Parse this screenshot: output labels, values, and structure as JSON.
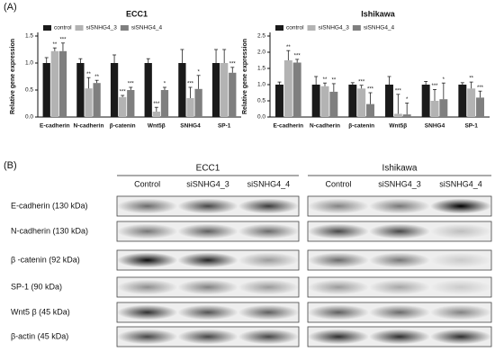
{
  "panel_labels": [
    "(A)",
    "(B)"
  ],
  "chart_data": [
    {
      "type": "bar",
      "title": "ECC1",
      "y_label": "Relative gene expression",
      "categories": [
        "E-cadherin",
        "N-cadherin",
        "β-catenin",
        "Wnt5β",
        "SNHG4",
        "SP-1"
      ],
      "series": [
        {
          "name": "control",
          "color": "#1a1a1a",
          "values": [
            1,
            1,
            1,
            1,
            1,
            1
          ],
          "errors": [
            0.1,
            0.08,
            0.15,
            0.08,
            0.25,
            0.25
          ],
          "significance": [
            null,
            null,
            null,
            null,
            null,
            null
          ]
        },
        {
          "name": "siSNHG4_3",
          "color": "#b3b3b3",
          "values": [
            1.22,
            0.53,
            0.37,
            0.1,
            0.35,
            1.0
          ],
          "errors": [
            0.06,
            0.2,
            0.03,
            0.08,
            0.2,
            0.25
          ],
          "significance": [
            "**",
            "**",
            "***",
            "***",
            "***",
            null
          ]
        },
        {
          "name": "siSNHG4_4",
          "color": "#7f7f7f",
          "values": [
            1.22,
            0.63,
            0.5,
            0.5,
            0.52,
            0.82
          ],
          "errors": [
            0.15,
            0.05,
            0.05,
            0.05,
            0.25,
            0.1
          ],
          "significance": [
            "***",
            "**",
            "***",
            "*",
            "*",
            "***"
          ]
        }
      ],
      "ylim": [
        0,
        1.5
      ],
      "yticks": [
        {
          "value": 0,
          "label": "0.0"
        },
        0.5,
        {
          "value": 1,
          "label": "1.0"
        },
        1.5
      ],
      "legend": "top-left"
    },
    {
      "type": "bar",
      "title": "Ishikawa",
      "y_label": "Relative gene expression",
      "categories": [
        "E-cadherin",
        "N-cadherin",
        "β-catenin",
        "Wnt5β",
        "SNHG4",
        "SP-1"
      ],
      "series": [
        {
          "name": "control",
          "color": "#1a1a1a",
          "values": [
            1,
            1,
            1,
            1,
            1,
            1
          ],
          "errors": [
            0.08,
            0.25,
            0.06,
            0.25,
            0.1,
            0.06
          ],
          "significance": [
            null,
            null,
            null,
            null,
            null,
            null
          ]
        },
        {
          "name": "siSNHG4_3",
          "color": "#b3b3b3",
          "values": [
            1.75,
            0.95,
            0.88,
            0.1,
            0.5,
            0.88
          ],
          "errors": [
            0.3,
            0.1,
            0.1,
            0.6,
            0.35,
            0.2
          ],
          "significance": [
            "**",
            "**",
            "***",
            "***",
            "***",
            "**"
          ]
        },
        {
          "name": "siSNHG4_4",
          "color": "#7f7f7f",
          "values": [
            1.68,
            0.78,
            0.4,
            0.08,
            0.55,
            0.6
          ],
          "errors": [
            0.1,
            0.25,
            0.35,
            0.35,
            0.5,
            0.2
          ],
          "significance": [
            "***",
            "**",
            "***",
            "*",
            "*",
            "***"
          ]
        }
      ],
      "ylim": [
        0,
        2.5
      ],
      "yticks": [
        {
          "value": 0,
          "label": "0.0"
        },
        0.5,
        {
          "value": 1,
          "label": "1.0"
        },
        1.5,
        {
          "value": 2,
          "label": "2.0"
        },
        2.5
      ],
      "legend": "top-left"
    }
  ],
  "blots": {
    "cell_lines": [
      "ECC1",
      "Ishikawa"
    ],
    "columns": [
      "Control",
      "siSNHG4_3",
      "siSNHG4_4"
    ],
    "rows": [
      "E-cadherin (130 kDa)",
      "N-cadherin (130 kDa)",
      "β -catenin (92 kDa)",
      "SP-1 (90 kDa)",
      "Wnt5 β  (45 kDa)",
      "β-actin (45 kDa)"
    ]
  }
}
